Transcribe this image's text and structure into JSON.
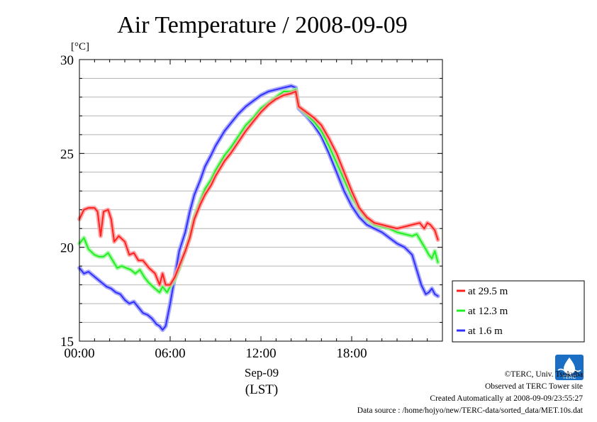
{
  "chart_data": {
    "type": "line",
    "title": "Air Temperature / 2008-09-09",
    "unit_label": "[°C]",
    "xlabel_date": "Sep-09",
    "xlabel_tz": "(LST)",
    "ylim": [
      15,
      30
    ],
    "yticks": [
      15,
      20,
      25,
      30
    ],
    "xlim_hours": [
      0,
      24
    ],
    "xticks": [
      {
        "hour": 0,
        "label": "00:00"
      },
      {
        "hour": 6,
        "label": "06:00"
      },
      {
        "hour": 12,
        "label": "12:00"
      },
      {
        "hour": 18,
        "label": "18:00"
      }
    ],
    "grid": true,
    "legend_position": "right-bottom",
    "series": [
      {
        "name": "at 29.5 m",
        "color": "#ff2020",
        "x": [
          0.0,
          0.3,
          0.6,
          1.0,
          1.2,
          1.4,
          1.6,
          1.9,
          2.1,
          2.3,
          2.6,
          3.0,
          3.3,
          3.6,
          3.9,
          4.2,
          4.6,
          5.0,
          5.3,
          5.5,
          5.7,
          6.0,
          6.3,
          6.6,
          7.0,
          7.3,
          7.6,
          8.0,
          8.3,
          8.7,
          9.0,
          9.3,
          9.6,
          10.0,
          10.5,
          11.0,
          11.5,
          12.0,
          12.5,
          13.0,
          13.5,
          14.0,
          14.3,
          14.5,
          15.0,
          15.5,
          16.0,
          16.5,
          17.0,
          17.5,
          18.0,
          18.5,
          19.0,
          19.5,
          20.0,
          20.5,
          21.0,
          21.5,
          22.0,
          22.5,
          22.8,
          23.0,
          23.2,
          23.5,
          23.7
        ],
        "values": [
          21.5,
          22.0,
          22.1,
          22.1,
          21.9,
          20.6,
          21.9,
          22.0,
          21.5,
          20.3,
          20.6,
          20.3,
          19.6,
          19.7,
          19.3,
          19.3,
          18.9,
          18.6,
          18.0,
          18.6,
          18.0,
          18.0,
          18.4,
          19.0,
          19.8,
          20.5,
          21.5,
          22.3,
          22.8,
          23.3,
          23.8,
          24.2,
          24.6,
          25.0,
          25.6,
          26.2,
          26.7,
          27.2,
          27.6,
          27.9,
          28.1,
          28.2,
          28.3,
          27.5,
          27.2,
          26.9,
          26.5,
          25.8,
          25.0,
          24.0,
          23.0,
          22.1,
          21.6,
          21.3,
          21.2,
          21.1,
          21.0,
          21.1,
          21.2,
          21.3,
          21.0,
          21.3,
          21.2,
          20.9,
          20.4
        ]
      },
      {
        "name": "at 12.3 m",
        "color": "#20f020",
        "x": [
          0.0,
          0.3,
          0.6,
          1.0,
          1.3,
          1.6,
          1.9,
          2.2,
          2.5,
          2.8,
          3.1,
          3.4,
          3.7,
          4.0,
          4.3,
          4.6,
          5.0,
          5.3,
          5.5,
          5.8,
          6.0,
          6.3,
          6.6,
          7.0,
          7.3,
          7.6,
          8.0,
          8.3,
          8.7,
          9.0,
          9.3,
          9.6,
          10.0,
          10.5,
          11.0,
          11.5,
          12.0,
          12.5,
          13.0,
          13.5,
          14.0,
          14.3,
          14.5,
          15.0,
          15.5,
          16.0,
          16.5,
          17.0,
          17.5,
          18.0,
          18.5,
          19.0,
          19.5,
          20.0,
          20.5,
          21.0,
          21.5,
          22.0,
          22.3,
          22.6,
          22.9,
          23.1,
          23.3,
          23.5,
          23.7
        ],
        "values": [
          20.2,
          20.5,
          19.9,
          19.6,
          19.5,
          19.5,
          19.7,
          19.3,
          18.9,
          19.0,
          18.9,
          18.8,
          18.6,
          18.8,
          18.4,
          18.1,
          17.8,
          17.6,
          17.9,
          17.6,
          17.9,
          18.3,
          18.9,
          19.8,
          20.6,
          21.6,
          22.5,
          23.1,
          23.6,
          24.1,
          24.5,
          24.9,
          25.3,
          25.9,
          26.5,
          26.9,
          27.4,
          27.7,
          28.0,
          28.3,
          28.3,
          28.4,
          27.5,
          27.1,
          26.7,
          26.2,
          25.4,
          24.5,
          23.6,
          22.7,
          22.0,
          21.5,
          21.2,
          21.1,
          21.0,
          20.8,
          20.7,
          20.6,
          20.7,
          20.3,
          19.9,
          19.6,
          19.4,
          19.8,
          19.2
        ]
      },
      {
        "name": "at 1.6 m",
        "color": "#3030ff",
        "x": [
          0.0,
          0.3,
          0.6,
          0.9,
          1.2,
          1.5,
          1.8,
          2.1,
          2.4,
          2.7,
          3.0,
          3.3,
          3.6,
          3.9,
          4.2,
          4.5,
          4.8,
          5.1,
          5.3,
          5.5,
          5.7,
          6.0,
          6.3,
          6.6,
          7.0,
          7.3,
          7.6,
          8.0,
          8.3,
          8.7,
          9.0,
          9.3,
          9.6,
          10.0,
          10.5,
          11.0,
          11.5,
          12.0,
          12.5,
          13.0,
          13.5,
          14.0,
          14.3,
          14.5,
          15.0,
          15.5,
          16.0,
          16.5,
          17.0,
          17.5,
          18.0,
          18.5,
          19.0,
          19.5,
          20.0,
          20.5,
          21.0,
          21.5,
          22.0,
          22.3,
          22.6,
          22.9,
          23.1,
          23.3,
          23.5,
          23.7
        ],
        "values": [
          18.9,
          18.6,
          18.7,
          18.5,
          18.3,
          18.1,
          17.9,
          17.8,
          17.6,
          17.5,
          17.2,
          17.0,
          17.1,
          16.8,
          16.5,
          16.4,
          16.2,
          15.9,
          15.8,
          15.6,
          15.8,
          17.0,
          18.4,
          19.8,
          20.8,
          21.9,
          22.8,
          23.6,
          24.3,
          24.9,
          25.4,
          25.8,
          26.2,
          26.6,
          27.1,
          27.5,
          27.8,
          28.1,
          28.3,
          28.4,
          28.5,
          28.6,
          28.5,
          27.4,
          27.0,
          26.5,
          25.9,
          25.0,
          24.0,
          23.0,
          22.2,
          21.6,
          21.2,
          21.0,
          20.8,
          20.5,
          20.2,
          20.0,
          19.6,
          18.8,
          18.0,
          17.5,
          17.6,
          17.8,
          17.5,
          17.4
        ]
      }
    ]
  },
  "footer": {
    "credit": "©TERC, Univ. Tsukuba",
    "observed": "Observed at TERC Tower site",
    "created": "Created Automatically at 2008-09-09/23:55:27",
    "source": "Data source : /home/hojyo/new/TERC-data/sorted_data/MET.10s.dat"
  },
  "logo": {
    "text": "TERC",
    "color": "#1a6fc4"
  }
}
